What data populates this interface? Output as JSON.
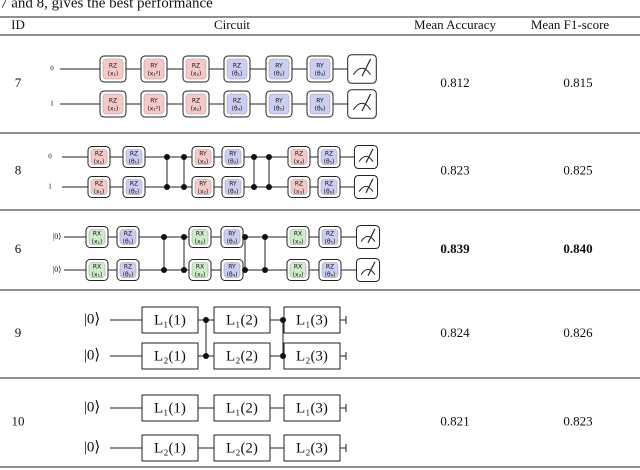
{
  "caption": "7 and 8, gives the best performance",
  "table": {
    "header": [
      "ID",
      "Circuit",
      "Mean Accuracy",
      "Mean F1-score"
    ],
    "rows": [
      {
        "id": "7",
        "circuit": {
          "wires": [
            {
              "label": "0",
              "gates": [
                {
                  "name": "RZ",
                  "param": "(x₁)",
                  "color": "#f6c9c9"
                },
                {
                  "name": "RY",
                  "param": "(x₁²)",
                  "color": "#f6c9c9"
                },
                {
                  "name": "RZ",
                  "param": "(x₂)",
                  "color": "#f6c9c9"
                },
                {
                  "name": "RZ",
                  "param": "(θ₁)",
                  "color": "#cbcdf2"
                },
                {
                  "name": "RY",
                  "param": "(θ₂)",
                  "color": "#cbcdf2"
                },
                {
                  "name": "RY",
                  "param": "(θ₃)",
                  "color": "#cbcdf2"
                }
              ]
            },
            {
              "label": "1",
              "gates": [
                {
                  "name": "RZ",
                  "param": "(x₁)",
                  "color": "#f6c9c9"
                },
                {
                  "name": "RY",
                  "param": "(x₁²)",
                  "color": "#f6c9c9"
                },
                {
                  "name": "RZ",
                  "param": "(x₂)",
                  "color": "#f6c9c9"
                },
                {
                  "name": "RZ",
                  "param": "(θ₄)",
                  "color": "#cbcdf2"
                },
                {
                  "name": "RY",
                  "param": "(θ₅)",
                  "color": "#cbcdf2"
                },
                {
                  "name": "RY",
                  "param": "(θ₆)",
                  "color": "#cbcdf2"
                }
              ]
            }
          ]
        },
        "accuracy": "0.812",
        "f1": "0.815"
      },
      {
        "id": "8",
        "circuit": {
          "wires": [
            {
              "label": "0",
              "gates": [
                {
                  "name": "RZ",
                  "param": "(x₁)",
                  "color": "#f6c9c9"
                },
                {
                  "name": "RZ",
                  "param": "(θ₁)",
                  "color": "#cbcdf2"
                },
                {
                  "name": "RY",
                  "param": "(x₂)",
                  "color": "#f6c9c9"
                },
                {
                  "name": "RY",
                  "param": "(θ₃)",
                  "color": "#cbcdf2"
                },
                {
                  "name": "RZ",
                  "param": "(x₃)",
                  "color": "#f6c9c9"
                },
                {
                  "name": "RZ",
                  "param": "(θ₅)",
                  "color": "#cbcdf2"
                }
              ]
            },
            {
              "label": "1",
              "gates": [
                {
                  "name": "RZ",
                  "param": "(x₁)",
                  "color": "#f6c9c9"
                },
                {
                  "name": "RZ",
                  "param": "(θ₂)",
                  "color": "#cbcdf2"
                },
                {
                  "name": "RY",
                  "param": "(x₂)",
                  "color": "#f6c9c9"
                },
                {
                  "name": "RY",
                  "param": "(θ₄)",
                  "color": "#cbcdf2"
                },
                {
                  "name": "RZ",
                  "param": "(x₃)",
                  "color": "#f6c9c9"
                },
                {
                  "name": "RZ",
                  "param": "(θ₆)",
                  "color": "#cbcdf2"
                }
              ]
            }
          ]
        },
        "accuracy": "0.823",
        "f1": "0.825"
      },
      {
        "id": "6",
        "circuit": {
          "wires": [
            {
              "label": "|0⟩",
              "gates": [
                {
                  "name": "RX",
                  "param": "(x₁)",
                  "color": "#cfeccb"
                },
                {
                  "name": "RZ",
                  "param": "(θ₁)",
                  "color": "#cbcdf2"
                },
                {
                  "name": "RX",
                  "param": "(x₂)",
                  "color": "#cfeccb"
                },
                {
                  "name": "RY",
                  "param": "(θ₃)",
                  "color": "#cbcdf2"
                },
                {
                  "name": "RX",
                  "param": "(x₃)",
                  "color": "#cfeccb"
                },
                {
                  "name": "RZ",
                  "param": "(θ₅)",
                  "color": "#cbcdf2"
                }
              ]
            },
            {
              "label": "|0⟩",
              "gates": [
                {
                  "name": "RX",
                  "param": "(x₁)",
                  "color": "#cfeccb"
                },
                {
                  "name": "RZ",
                  "param": "(θ₂)",
                  "color": "#cbcdf2"
                },
                {
                  "name": "RX",
                  "param": "(x₂)",
                  "color": "#cfeccb"
                },
                {
                  "name": "RY",
                  "param": "(θ₄)",
                  "color": "#cbcdf2"
                },
                {
                  "name": "RX",
                  "param": "(x₃)",
                  "color": "#cfeccb"
                },
                {
                  "name": "RZ",
                  "param": "(θ₆)",
                  "color": "#cbcdf2"
                }
              ]
            }
          ]
        },
        "accuracy": "0.839",
        "f1": "0.840"
      },
      {
        "id": "9",
        "circuit": {
          "wires": [
            {
              "label": "|0⟩",
              "gates": [
                {
                  "name": "L₁(1)"
                },
                {
                  "name": "L₁(2)"
                },
                {
                  "name": "L₁(3)"
                }
              ]
            },
            {
              "label": "|0⟩",
              "gates": [
                {
                  "name": "L₂(1)"
                },
                {
                  "name": "L₂(2)"
                },
                {
                  "name": "L₂(3)"
                }
              ]
            }
          ]
        },
        "accuracy": "0.824",
        "f1": "0.826"
      },
      {
        "id": "10",
        "circuit": {
          "wires": [
            {
              "label": "|0⟩",
              "gates": [
                {
                  "name": "L₁(1)"
                },
                {
                  "name": "L₁(2)"
                },
                {
                  "name": "L₁(3)"
                }
              ]
            },
            {
              "label": "|0⟩",
              "gates": [
                {
                  "name": "L₂(1)"
                },
                {
                  "name": "L₂(2)"
                },
                {
                  "name": "L₂(3)"
                }
              ]
            }
          ]
        },
        "accuracy": "0.821",
        "f1": "0.823"
      }
    ]
  }
}
